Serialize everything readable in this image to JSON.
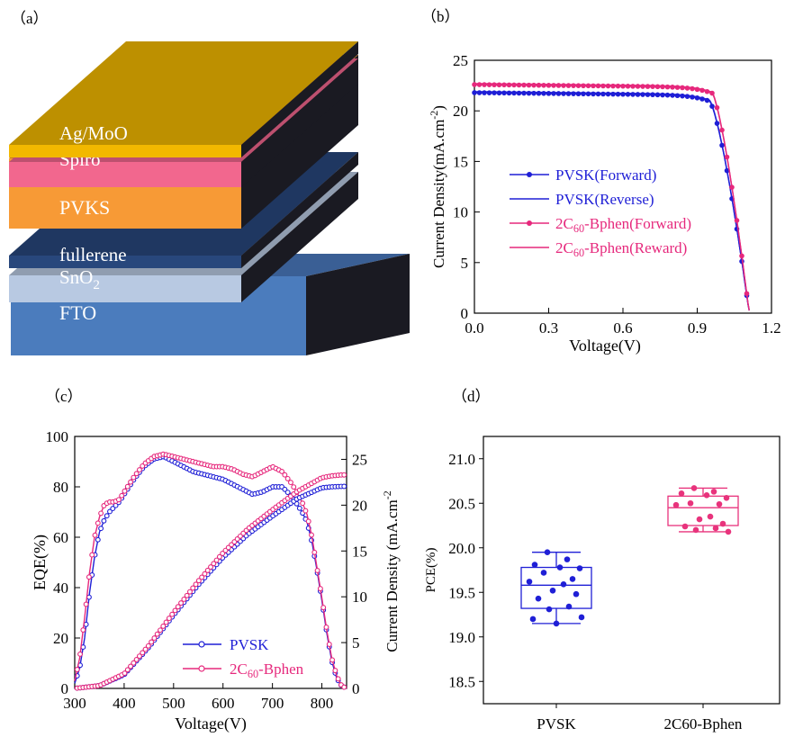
{
  "panel_labels": {
    "a": "（a）",
    "b": "（b）",
    "c": "（c）",
    "d": "（d）"
  },
  "colors": {
    "blue": "#1f1fd6",
    "pink": "#e6287c",
    "box_pink": "#e8337c"
  },
  "layers": [
    {
      "id": "ag",
      "label": "Ag/MoO",
      "color": "#f2b800"
    },
    {
      "id": "spiro",
      "label": "Spiro",
      "color": "#f2678e"
    },
    {
      "id": "pvks",
      "label": "PVKS",
      "color": "#f79a36"
    },
    {
      "id": "fullerene",
      "label": "fullerene",
      "color": "#28477c"
    },
    {
      "id": "sno2",
      "label": "SnO",
      "sub": "2",
      "color": "#b8c9e2"
    },
    {
      "id": "fto",
      "label": "FTO",
      "color": "#4b7cbd"
    }
  ],
  "chart_data": [
    {
      "id": "b",
      "type": "line",
      "xlabel": "Voltage(V)",
      "ylabel": "Current Density(mA.cm",
      "ylabel_sup": "-2",
      "ylabel_close": ")",
      "xlim": [
        0,
        1.2
      ],
      "ylim": [
        0,
        25
      ],
      "xticks": [
        0.0,
        0.3,
        0.6,
        0.9,
        1.2
      ],
      "xtick_labels": [
        "0.0",
        "0.3",
        "0.6",
        "0.9",
        "1.2"
      ],
      "yticks": [
        0,
        5,
        10,
        15,
        20,
        25
      ],
      "ytick_labels": [
        "0",
        "5",
        "10",
        "15",
        "20",
        "25"
      ],
      "legend": [
        {
          "name": "PVSK(Forward)",
          "pre": "PVSK(Forward)",
          "sub": "",
          "post": ""
        },
        {
          "name": "PVSK(Reverse)",
          "pre": "PVSK(Reverse)",
          "sub": "",
          "post": ""
        },
        {
          "name": "2C60-Bphen(Forward)",
          "pre": "2C",
          "sub": "60",
          "post": "-Bphen(Forward)"
        },
        {
          "name": "2C60-Bphen(Reward)",
          "pre": "2C",
          "sub": "60",
          "post": "-Bphen(Reward)"
        }
      ],
      "series": [
        {
          "name": "PVSK(Forward)",
          "jsc": 21.8,
          "voc": 1.11,
          "knee": 0.95
        },
        {
          "name": "PVSK(Reverse)",
          "jsc": 21.9,
          "voc": 1.11,
          "knee": 0.95
        },
        {
          "name": "2C60-Bphen(Forward)",
          "jsc": 22.6,
          "voc": 1.11,
          "knee": 0.96
        },
        {
          "name": "2C60-Bphen(Reward)",
          "jsc": 22.7,
          "voc": 1.11,
          "knee": 0.96
        }
      ]
    },
    {
      "id": "c",
      "type": "line",
      "xlabel": "Voltage(V)",
      "ylabel_left": "EQE(%)",
      "ylabel_right": "Current Density (mA.cm",
      "ylabel_right_sup": "-2",
      "xlim": [
        300,
        850
      ],
      "ylim_left": [
        0,
        100
      ],
      "ylim_right": [
        0,
        27.5
      ],
      "xticks": [
        300,
        400,
        500,
        600,
        700,
        800
      ],
      "xtick_labels": [
        "300",
        "400",
        "500",
        "600",
        "700",
        "800"
      ],
      "yticks_left": [
        0,
        20,
        40,
        60,
        80,
        100
      ],
      "ytick_labels_left": [
        "0",
        "20",
        "40",
        "60",
        "80",
        "100"
      ],
      "yticks_right": [
        0,
        5,
        10,
        15,
        20,
        25
      ],
      "ytick_labels_right": [
        "0",
        "5",
        "10",
        "15",
        "20",
        "25"
      ],
      "legend": [
        {
          "name": "PVSK",
          "pre": "PVSK",
          "sub": "",
          "post": ""
        },
        {
          "name": "2C60-Bphen",
          "pre": "2C",
          "sub": "60",
          "post": "-Bphen"
        }
      ],
      "series": [
        {
          "name": "PVSK EQE",
          "x": [
            300,
            310,
            320,
            330,
            340,
            350,
            360,
            370,
            380,
            390,
            400,
            420,
            440,
            460,
            480,
            500,
            520,
            540,
            560,
            580,
            600,
            620,
            640,
            660,
            680,
            700,
            720,
            740,
            760,
            770,
            780,
            790,
            800,
            810,
            820,
            830,
            840,
            850
          ],
          "y": [
            2,
            8,
            20,
            38,
            52,
            62,
            67,
            70,
            72,
            74,
            77,
            83,
            88,
            91,
            92,
            90,
            88,
            86,
            85,
            84,
            83,
            81,
            79,
            77,
            78,
            80,
            80,
            76,
            70,
            66,
            58,
            47,
            35,
            22,
            11,
            4,
            1,
            0
          ]
        },
        {
          "name": "2C60-Bphen EQE",
          "x": [
            300,
            310,
            320,
            330,
            340,
            350,
            360,
            370,
            380,
            390,
            400,
            420,
            440,
            460,
            480,
            500,
            520,
            540,
            560,
            580,
            600,
            620,
            640,
            660,
            680,
            700,
            720,
            740,
            760,
            770,
            780,
            790,
            800,
            810,
            820,
            830,
            840,
            850
          ],
          "y": [
            3,
            12,
            28,
            46,
            60,
            68,
            73,
            74,
            74,
            75,
            78,
            84,
            89,
            92,
            93,
            92,
            91,
            90,
            89,
            88,
            88,
            87,
            85,
            84,
            86,
            88,
            86,
            81,
            74,
            69,
            60,
            48,
            36,
            23,
            12,
            5,
            1,
            0
          ]
        },
        {
          "name": "PVSK Jsc",
          "x": [
            300,
            350,
            400,
            450,
            500,
            550,
            600,
            650,
            700,
            750,
            800,
            820,
            840,
            850
          ],
          "y": [
            0,
            0.3,
            1.5,
            4.5,
            8,
            11.3,
            14.3,
            16.8,
            18.8,
            20.7,
            21.9,
            22.0,
            22.05,
            22.05
          ]
        },
        {
          "name": "2C60-Bphen Jsc",
          "x": [
            300,
            350,
            400,
            450,
            500,
            550,
            600,
            650,
            700,
            750,
            800,
            820,
            840,
            850
          ],
          "y": [
            0,
            0.3,
            1.6,
            4.7,
            8.3,
            11.7,
            14.8,
            17.4,
            19.5,
            21.5,
            23.0,
            23.2,
            23.3,
            23.3
          ]
        }
      ]
    },
    {
      "id": "d",
      "type": "box",
      "ylabel": "PCE(%)",
      "ylim": [
        18.25,
        21.25
      ],
      "yticks": [
        18.5,
        19.0,
        19.5,
        20.0,
        20.5,
        21.0
      ],
      "ytick_labels": [
        "18.5",
        "19.0",
        "19.5",
        "20.0",
        "20.5",
        "21.0"
      ],
      "categories": [
        "PVSK",
        "2C60-Bphen"
      ],
      "boxes": [
        {
          "name": "PVSK",
          "q1": 19.32,
          "median": 19.58,
          "q3": 19.78,
          "min": 19.15,
          "max": 19.95,
          "points": [
            19.95,
            19.87,
            19.81,
            19.78,
            19.77,
            19.72,
            19.65,
            19.62,
            19.59,
            19.52,
            19.48,
            19.43,
            19.34,
            19.31,
            19.22,
            19.2,
            19.15
          ]
        },
        {
          "name": "2C60-Bphen",
          "q1": 20.25,
          "median": 20.45,
          "q3": 20.58,
          "min": 20.18,
          "max": 20.67,
          "points": [
            20.67,
            20.63,
            20.61,
            20.59,
            20.56,
            20.5,
            20.49,
            20.48,
            20.35,
            20.32,
            20.27,
            20.24,
            20.22,
            20.2,
            20.18
          ]
        }
      ]
    }
  ]
}
